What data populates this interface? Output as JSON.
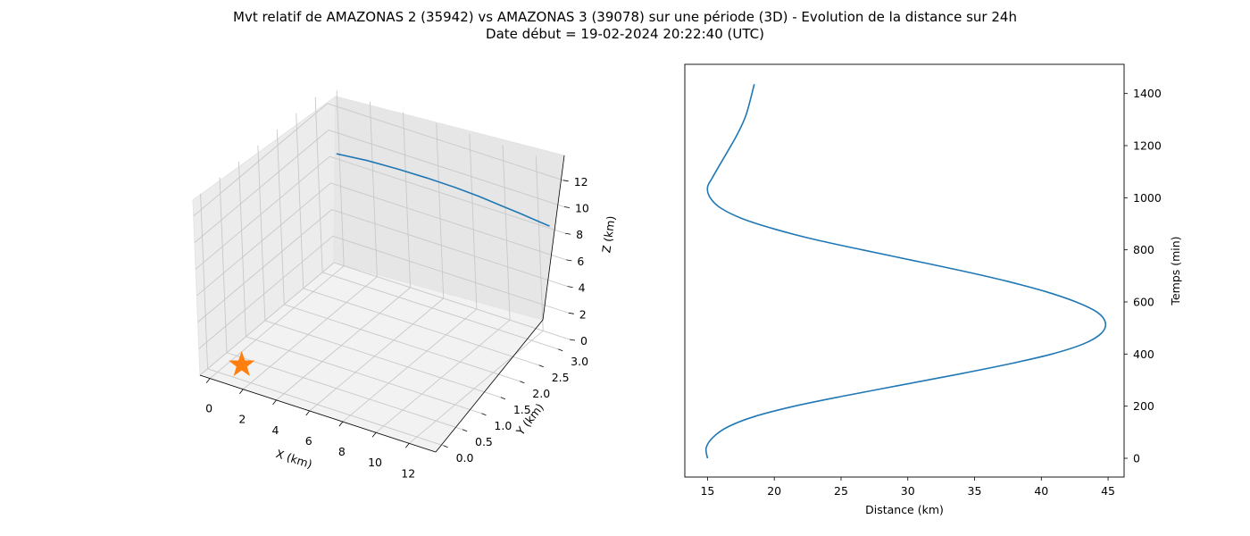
{
  "figure": {
    "title_line1": "Mvt relatif de AMAZONAS 2 (35942) vs AMAZONAS 3 (39078) sur une période (3D) - Evolution de la distance sur 24h",
    "title_line2": "Date début = 19-02-2024 20:22:40 (UTC)"
  },
  "colors": {
    "series": "#1f77b4",
    "marker": "#ff7f0e",
    "pane": "#f2f2f2",
    "grid": "#c8c8c8"
  },
  "chart_data": [
    {
      "type": "line",
      "projection": "3d",
      "xlabel": "X (km)",
      "ylabel": "Y (km)",
      "zlabel": "Z (km)",
      "xlim": [
        -0.6,
        13.6
      ],
      "ylim": [
        -0.2,
        3.3
      ],
      "zlim": [
        0,
        13.2
      ],
      "x_ticks": [
        "0",
        "2",
        "4",
        "6",
        "8",
        "10",
        "12"
      ],
      "y_ticks": [
        "0.0",
        "0.5",
        "1.0",
        "1.5",
        "2.0",
        "2.5",
        "3.0"
      ],
      "z_ticks": [
        "0",
        "2",
        "4",
        "6",
        "8",
        "10",
        "12"
      ],
      "grid": true,
      "series": [
        {
          "x": [
            12.9,
            12.2,
            11.4,
            10.4,
            9.3,
            8.1,
            6.8,
            5.4,
            4.0,
            2.6
          ],
          "y": [
            3.2,
            3.17,
            3.12,
            3.04,
            2.94,
            2.82,
            2.68,
            2.52,
            2.34,
            2.15
          ],
          "z": [
            8.5,
            8.7,
            9.0,
            9.4,
            9.9,
            10.4,
            10.9,
            11.4,
            11.9,
            12.3
          ]
        }
      ],
      "marker": {
        "shape": "star",
        "x": 0,
        "y": 0,
        "z": 0
      }
    },
    {
      "type": "line",
      "xlabel": "Distance (km)",
      "ylabel": "Temps (min)",
      "xlim": [
        13.3,
        46.2
      ],
      "ylim": [
        -72,
        1512
      ],
      "x_ticks": [
        15,
        20,
        25,
        30,
        35,
        40,
        45
      ],
      "y_ticks": [
        0,
        200,
        400,
        600,
        800,
        1000,
        1200,
        1400
      ],
      "grid": false,
      "series": [
        {
          "x": [
            15.0,
            14.9,
            15.4,
            16.5,
            18.5,
            21.5,
            25.3,
            29.4,
            33.5,
            37.4,
            40.8,
            43.2,
            44.5,
            44.8,
            44.2,
            42.6,
            40.3,
            37.4,
            34.0,
            30.3,
            26.6,
            23.0,
            20.0,
            17.6,
            16.0,
            15.2,
            15.0,
            15.4,
            16.3,
            17.2,
            17.9,
            18.5
          ],
          "y": [
            0,
            40,
            80,
            120,
            160,
            200,
            240,
            280,
            320,
            360,
            400,
            440,
            480,
            520,
            560,
            600,
            640,
            680,
            720,
            760,
            800,
            840,
            880,
            920,
            960,
            1000,
            1040,
            1080,
            1160,
            1240,
            1320,
            1436
          ]
        }
      ]
    }
  ]
}
